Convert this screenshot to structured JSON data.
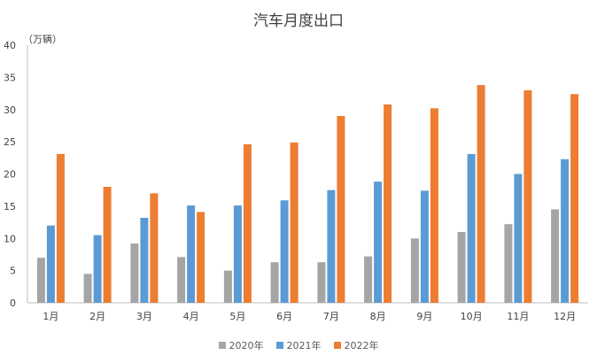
{
  "chart_data": {
    "type": "bar",
    "title": "汽车月度出口",
    "unit_label": "（万辆）",
    "categories": [
      "1月",
      "2月",
      "3月",
      "4月",
      "5月",
      "6月",
      "7月",
      "8月",
      "9月",
      "10月",
      "11月",
      "12月"
    ],
    "series": [
      {
        "name": "2020年",
        "color": "#a5a5a5",
        "values": [
          7.0,
          4.5,
          9.2,
          7.1,
          5.0,
          6.3,
          6.3,
          7.2,
          10.0,
          11.0,
          12.2,
          14.5
        ]
      },
      {
        "name": "2021年",
        "color": "#5b9bd5",
        "values": [
          12.0,
          10.5,
          13.2,
          15.1,
          15.1,
          15.9,
          17.5,
          18.8,
          17.4,
          23.1,
          20.0,
          22.3
        ]
      },
      {
        "name": "2022年",
        "color": "#ed7d31",
        "values": [
          23.1,
          18.0,
          17.0,
          14.1,
          24.6,
          24.9,
          29.0,
          30.8,
          30.2,
          33.8,
          33.0,
          32.4
        ]
      }
    ],
    "ylim": [
      0,
      40
    ],
    "yticks": [
      "0",
      "5",
      "10",
      "15",
      "20",
      "25",
      "30",
      "35",
      "40"
    ],
    "grid": false,
    "legend_position": "bottom"
  }
}
